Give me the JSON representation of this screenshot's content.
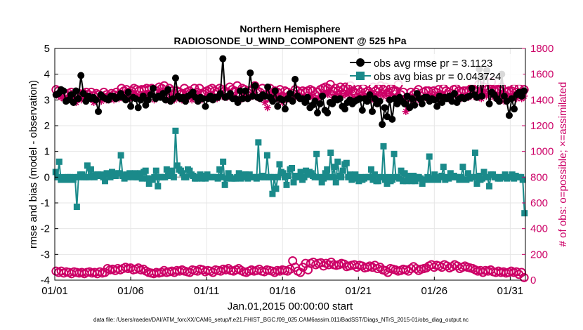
{
  "chart_data": {
    "type": "line",
    "title": "Northern Hemisphere",
    "subtitle": "RADIOSONDE_U_WIND_COMPONENT @ 525 hPa",
    "xlabel": "Jan.01,2015 00:00:00 start",
    "ylabel": "rmse and bias (model - observation)",
    "ylabel_right": "# of obs: o=possible; ×=assimilated",
    "x_tick_labels": [
      "01/01",
      "01/06",
      "01/11",
      "01/16",
      "01/21",
      "01/26",
      "01/31"
    ],
    "x_tick_days": [
      0,
      5,
      10,
      15,
      20,
      25,
      30
    ],
    "xlim_days": [
      0,
      31
    ],
    "ylim": [
      -4,
      5
    ],
    "y_ticks": [
      "-4",
      "-3",
      "-2",
      "-1",
      "0",
      "1",
      "2",
      "3",
      "4",
      "5"
    ],
    "ylim_right": [
      0,
      1800
    ],
    "y_ticks_right": [
      "0",
      "200",
      "400",
      "600",
      "800",
      "1000",
      "1200",
      "1400",
      "1600",
      "1800"
    ],
    "legend_position": "top-right",
    "series": [
      {
        "name": "obs avg rmse pr = 3.1123",
        "axis": "left",
        "color": "#000000",
        "marker": "circle",
        "values": [
          3.2,
          3.25,
          3.4,
          3.35,
          2.95,
          3.0,
          3.2,
          2.9,
          3.35,
          3.05,
          3.95,
          3.25,
          2.95,
          3.15,
          3.05,
          3.1,
          3.0,
          2.55,
          3.2,
          3.1,
          3.05,
          3.0,
          3.15,
          3.15,
          3.05,
          3.1,
          3.25,
          3.1,
          3.0,
          3.3,
          2.75,
          3.1,
          3.05,
          2.7,
          3.0,
          3.15,
          2.8,
          3.0,
          3.2,
          3.45,
          3.05,
          3.15,
          3.1,
          3.25,
          3.0,
          3.4,
          2.95,
          3.05,
          3.85,
          3.15,
          3.05,
          3.1,
          2.95,
          3.15,
          3.2,
          3.3,
          3.1,
          2.95,
          3.1,
          3.05,
          2.75,
          3.05,
          3.15,
          3.0,
          3.1,
          3.1,
          3.25,
          4.6,
          3.1,
          3.15,
          3.25,
          3.05,
          3.05,
          2.9,
          3.35,
          3.05,
          3.35,
          3.05,
          4.05,
          3.15,
          3.55,
          3.1,
          3.05,
          3.2,
          3.15,
          3.5,
          3.1,
          2.95,
          3.35,
          2.75,
          3.05,
          3.0,
          2.65,
          3.05,
          3.25,
          2.95,
          3.8,
          3.15,
          3.05,
          3.05,
          2.9,
          3.1,
          2.7,
          2.8,
          2.95,
          2.5,
          2.85,
          3.15,
          2.6,
          2.5,
          2.9,
          2.85,
          3.05,
          3.0,
          3.05,
          2.75,
          2.65,
          2.9,
          3.0,
          2.85,
          2.95,
          3.0,
          3.05,
          2.6,
          3.05,
          2.95,
          3.2,
          2.55,
          3.05,
          2.85,
          2.95,
          2.05,
          2.7,
          2.35,
          3.0,
          2.25,
          3.05,
          2.85,
          3.1,
          2.95,
          2.85,
          3.15,
          2.7,
          3.05,
          2.8,
          3.25,
          3.05,
          2.85,
          3.1,
          3.1,
          2.95,
          3.05,
          3.0,
          2.75,
          3.15,
          2.9,
          3.1,
          3.05,
          3.15,
          2.95,
          3.25,
          2.9,
          3.05,
          3.1,
          3.05,
          3.1,
          3.15,
          3.45,
          3.2,
          3.1,
          4.2,
          3.15,
          3.9,
          4.15,
          2.85,
          3.3,
          3.2,
          3.05,
          2.95,
          4.0,
          3.15,
          2.95,
          2.4,
          3.05,
          2.65,
          3.2,
          3.3,
          3.15,
          3.35
        ]
      },
      {
        "name": "obs avg bias pr = 0.043724",
        "axis": "left",
        "color": "#1a8a8a",
        "marker": "square",
        "values": [
          0.2,
          0.0,
          0.6,
          -0.1,
          0.0,
          -0.1,
          -0.1,
          0.0,
          0.0,
          -0.1,
          -0.1,
          0.0,
          -1.15,
          0.0,
          0.1,
          0.1,
          0.0,
          0.0,
          0.45,
          0.0,
          0.3,
          0.05,
          0.0,
          0.1,
          0.1,
          0.05,
          0.1,
          0.0,
          -0.15,
          0.15,
          0.1,
          0.0,
          0.2,
          0.1,
          0.05,
          0.15,
          0.15,
          0.85,
          0.05,
          -0.05,
          0.1,
          0.0,
          0.15,
          0.05,
          0.0,
          0.15,
          0.0,
          0.0,
          0.15,
          -0.05,
          0.2,
          0.25,
          -0.05,
          -0.25,
          -0.05,
          -0.1,
          0.0,
          0.25,
          -0.35,
          0.0,
          0.0,
          0.0,
          0.0,
          0.3,
          0.05,
          0.15,
          0.25,
          0.0,
          1.8,
          0.45,
          0.3,
          0.25,
          0.15,
          0.0,
          0.0,
          0.3,
          0.25,
          0.1,
          0.05,
          -0.05,
          -0.05,
          0.0,
          0.1,
          -0.05,
          0.05,
          -0.05,
          0.1,
          0.0,
          0.0,
          0.0,
          0.0,
          0.0,
          -0.05,
          0.3,
          0.0,
          0.6,
          -0.3,
          -0.05,
          0.15,
          0.0,
          -0.05,
          -0.05,
          -0.05,
          0.0,
          0.15,
          -0.05,
          0.0,
          0.1,
          0.1,
          -0.05,
          0.1,
          0.0,
          0.0,
          0.0,
          -0.05,
          1.35,
          0.0,
          0.05,
          0.0,
          0.0,
          0.85,
          0.0,
          0.0,
          -0.65,
          0.0,
          -0.45,
          0.0,
          0.5,
          0.2,
          0.15,
          0.0,
          -0.3,
          0.05,
          0.3,
          0.35,
          -0.2,
          0.05,
          0.0,
          0.0,
          0.2,
          -0.1,
          0.0,
          0.25,
          0.1,
          0.2,
          0.15,
          0.05,
          0.0,
          0.9,
          0.0,
          0.0,
          -0.2,
          -0.05,
          0.15,
          0.3,
          0.0,
          0.95,
          0.0,
          0.4,
          -0.2,
          0.6,
          0.05,
          0.0,
          0.25,
          0.5,
          0.55,
          0.0,
          0.1,
          -0.1,
          -0.05,
          0.1,
          0.0,
          -0.15,
          0.0,
          -0.1,
          -0.05,
          0.0,
          0.0,
          0.0,
          0.3,
          -0.1,
          0.1,
          -0.15,
          -0.15,
          0.0,
          0.0,
          1.2,
          -0.1,
          -0.25,
          0.0,
          -0.15,
          -0.1,
          0.9,
          0.0,
          0.0,
          -0.05,
          0.25,
          -0.15,
          0.15,
          -0.15,
          0.05,
          0.0,
          -0.15,
          0.05,
          -0.15,
          0.0,
          0.0,
          -0.05,
          -0.25,
          -0.1,
          -0.1,
          0.0,
          0.8,
          -0.1,
          -0.05,
          0.1,
          -0.1,
          -0.1,
          0.0,
          0.05,
          0.4,
          -0.1,
          0.0,
          -0.05,
          0.15,
          0.0,
          0.05,
          0.0,
          0.0,
          -0.1,
          0.0,
          0.4,
          -0.1,
          -0.1,
          0.15,
          -0.05,
          0.0,
          0.0,
          0.95,
          -0.25,
          0.05,
          -0.1,
          -0.05,
          0.2,
          0.0,
          0.0,
          -0.35,
          0.1,
          0.1,
          0.0,
          0.0,
          -0.05,
          -0.05,
          0.0,
          0.0,
          0.1,
          -0.05,
          0.0,
          0.0,
          0.1,
          -0.05,
          0.05,
          0.0,
          0.0,
          0.0,
          -0.1,
          -1.4
        ]
      },
      {
        "name": "possible obs count",
        "axis": "right",
        "color": "#cc0066",
        "marker": "circle-open",
        "values": [
          1480,
          1470,
          1460,
          1450,
          1440,
          1450,
          1460,
          1440,
          1430,
          1450,
          1440,
          1450,
          1460,
          1440,
          1460,
          1430,
          1450,
          1440,
          1430,
          1460,
          1440,
          1430,
          1450,
          1440,
          1460,
          1440,
          1490,
          1470,
          1480,
          1460,
          1470,
          1490,
          1480,
          1470,
          1480,
          1480,
          1490,
          1480,
          1490,
          1450,
          1470,
          1500,
          1490,
          1510,
          1450,
          1490,
          1470,
          1440,
          1470,
          1460,
          1450,
          1490,
          1460,
          1470,
          1450,
          1490,
          1460,
          1490,
          1450,
          1460,
          1470,
          1480,
          1490,
          1470,
          1460,
          1490,
          1480,
          1470,
          1460,
          1500,
          1480,
          1470,
          1510,
          1450,
          1490,
          1480,
          1460,
          1470,
          1480,
          1510,
          1470,
          1460,
          1490,
          1440,
          1420,
          1490,
          1450,
          1470,
          1460,
          1480,
          1430,
          1470,
          1460,
          1440,
          1450,
          1480,
          1470,
          1450,
          1470,
          1460,
          1470,
          1480,
          1470,
          1440,
          1460,
          1480,
          1490,
          1500,
          1490,
          1520,
          1470,
          1490,
          1470,
          1500,
          1480,
          1500,
          1490,
          1510,
          1470,
          1450,
          1480,
          1460,
          1490,
          1460,
          1470,
          1440,
          1500,
          1470,
          1490,
          1510,
          1480,
          1500,
          1460,
          1490,
          1470,
          1470,
          1520,
          1440,
          1460,
          1410,
          1420,
          1460,
          1440,
          1460,
          1480,
          1430,
          1460,
          1470,
          1470,
          1440,
          1470,
          1460,
          1480,
          1440,
          1490,
          1470,
          1460,
          1450,
          1480,
          1490,
          1470,
          1460,
          1470,
          1470,
          1470,
          1490,
          1480,
          1470,
          1520,
          1460,
          1500,
          1480,
          1490,
          1540,
          1470,
          1480,
          1480,
          1500,
          1440,
          1460,
          1470,
          1470,
          1490,
          1460,
          1490,
          1460,
          1480
        ]
      },
      {
        "name": "assimilated obs count",
        "axis": "right",
        "color": "#cc0066",
        "marker": "asterisk",
        "values": [
          1440,
          1430,
          1420,
          1410,
          1400,
          1420,
          1430,
          1410,
          1380,
          1410,
          1400,
          1420,
          1430,
          1410,
          1420,
          1380,
          1400,
          1410,
          1390,
          1420,
          1400,
          1400,
          1410,
          1400,
          1420,
          1410,
          1450,
          1430,
          1440,
          1410,
          1420,
          1450,
          1440,
          1420,
          1440,
          1430,
          1450,
          1440,
          1450,
          1400,
          1420,
          1460,
          1450,
          1470,
          1400,
          1450,
          1420,
          1400,
          1430,
          1410,
          1400,
          1440,
          1420,
          1430,
          1400,
          1450,
          1410,
          1440,
          1400,
          1420,
          1420,
          1430,
          1440,
          1430,
          1410,
          1440,
          1430,
          1420,
          1420,
          1450,
          1440,
          1420,
          1470,
          1400,
          1440,
          1440,
          1410,
          1420,
          1430,
          1460,
          1420,
          1410,
          1440,
          1380,
          1340,
          1440,
          1400,
          1420,
          1410,
          1430,
          1380,
          1420,
          1410,
          1400,
          1400,
          1430,
          1420,
          1410,
          1420,
          1410,
          1420,
          1430,
          1420,
          1390,
          1410,
          1430,
          1440,
          1450,
          1440,
          1470,
          1420,
          1440,
          1420,
          1450,
          1430,
          1450,
          1440,
          1460,
          1420,
          1400,
          1430,
          1420,
          1440,
          1410,
          1420,
          1400,
          1450,
          1420,
          1440,
          1460,
          1430,
          1450,
          1410,
          1440,
          1420,
          1420,
          1470,
          1390,
          1410,
          1310,
          1340,
          1410,
          1390,
          1410,
          1430,
          1380,
          1410,
          1420,
          1420,
          1400,
          1420,
          1410,
          1430,
          1390,
          1440,
          1420,
          1410,
          1400,
          1430,
          1440,
          1420,
          1410,
          1420,
          1420,
          1420,
          1440,
          1430,
          1420,
          1470,
          1410,
          1450,
          1430,
          1440,
          1490,
          1420,
          1430,
          1430,
          1450,
          1390,
          1410,
          1420,
          1420,
          1440,
          1410,
          1440,
          1410,
          1430
        ]
      },
      {
        "name": "possible obs count (lower band)",
        "axis": "right",
        "color": "#cc0066",
        "marker": "circle-open",
        "values": [
          70,
          60,
          70,
          55,
          65,
          60,
          50,
          65,
          60,
          55,
          60,
          50,
          60,
          65,
          55,
          60,
          50,
          65,
          55,
          60,
          90,
          80,
          85,
          75,
          90,
          80,
          90,
          100,
          90,
          95,
          80,
          85,
          95,
          80,
          85,
          70,
          60,
          55,
          50,
          60,
          55,
          60,
          75,
          60,
          65,
          70,
          60,
          75,
          70,
          80,
          70,
          65,
          60,
          80,
          75,
          70,
          85,
          80,
          65,
          75,
          70,
          60,
          80,
          75,
          70,
          85,
          80,
          90,
          75,
          70,
          80,
          90,
          75,
          65,
          60,
          70,
          80,
          70,
          75,
          85,
          70,
          65,
          80,
          75,
          70,
          60,
          75,
          70,
          80,
          75,
          70,
          85,
          150,
          100,
          70,
          60,
          100,
          130,
          80,
          130,
          140,
          120,
          130,
          135,
          110,
          130,
          120,
          140,
          120,
          115,
          120,
          130,
          125,
          105,
          110,
          115,
          120,
          100,
          115,
          110,
          95,
          100,
          110,
          100,
          115,
          90,
          100,
          80,
          75,
          60,
          90,
          85,
          80,
          70,
          75,
          85,
          80,
          70,
          90,
          105,
          90,
          75,
          85,
          90,
          95,
          110,
          120,
          100,
          115,
          110,
          100,
          120,
          110,
          95,
          105,
          120,
          110,
          90,
          100,
          110,
          100,
          95,
          90,
          80,
          70,
          75,
          60,
          75,
          70,
          80,
          65,
          60,
          70,
          60,
          65,
          55,
          60,
          70,
          60,
          65,
          45,
          60,
          20
        ]
      }
    ]
  },
  "footer": {
    "data_file": "data file: /Users/raeder/DAI/ATM_forcXX/CAM6_setup/f.e21.FHIST_BGC.f09_025.CAM6assim.011/BadSST/Diags_NTrS_2015-01/obs_diag_output.nc"
  }
}
